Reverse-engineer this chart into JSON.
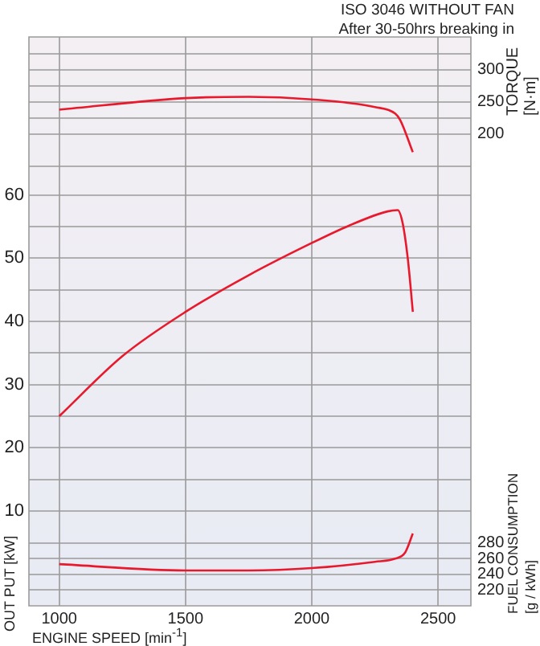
{
  "chart_data": {
    "type": "line",
    "title": "ISO 3046 WITHOUT FAN",
    "subtitle": "After 30-50hrs breaking in",
    "xlabel": "ENGINE SPEED [min$^{-1}$]",
    "ylabel": "OUT PUT [kW]",
    "y2label": "TORQUE [N·m]",
    "y3label": "FUEL CONSUMPTION [g / kWh]",
    "xlim": [
      880,
      2630
    ],
    "xticks": [
      1000,
      1500,
      2000,
      2500
    ],
    "ylim": [
      -5,
      85
    ],
    "yticks": [
      10,
      {
        "value": 15,
        "label": null
      },
      20,
      {
        "value": 25,
        "label": null
      },
      30,
      {
        "value": 35,
        "label": null
      },
      40,
      {
        "value": 45,
        "label": null
      },
      50,
      {
        "value": 55,
        "label": null
      },
      60
    ],
    "y2lim": [
      -533,
      351
    ],
    "y2ticks": [
      {
        "value": 150,
        "label": null
      },
      200,
      {
        "value": 225,
        "label": null
      },
      250,
      {
        "value": 275,
        "label": null
      },
      300,
      {
        "value": 325,
        "label": null
      }
    ],
    "y3lim": [
      200,
      924
    ],
    "y3ticks": [
      220,
      240,
      260,
      280
    ],
    "grid": true,
    "legend": false,
    "marker": "none",
    "line_style": "solid",
    "series": [
      {
        "color": "#e8192c",
        "x": [
          1000,
          1250,
          1500,
          1750,
          2000,
          2150,
          2300,
          2340,
          2360,
          2380,
          2390,
          2400
        ],
        "values": [
          25,
          34.5,
          41.5,
          47.3,
          52.4,
          55.2,
          57.4,
          57.6,
          55.5,
          50,
          46,
          41.5
        ]
      },
      {
        "color": "#e8192c",
        "axis": "y2",
        "x": [
          1000,
          1500,
          1750,
          2000,
          2250,
          2330,
          2350,
          2400
        ],
        "values": [
          238,
          256,
          258,
          254,
          242,
          232,
          222,
          172
        ]
      },
      {
        "color": "#e8192c",
        "axis": "y3",
        "x": [
          1000,
          1500,
          1750,
          2000,
          2250,
          2330,
          2370,
          2400
        ],
        "values": [
          253,
          245,
          245,
          248,
          256,
          260,
          268,
          292
        ]
      }
    ]
  }
}
